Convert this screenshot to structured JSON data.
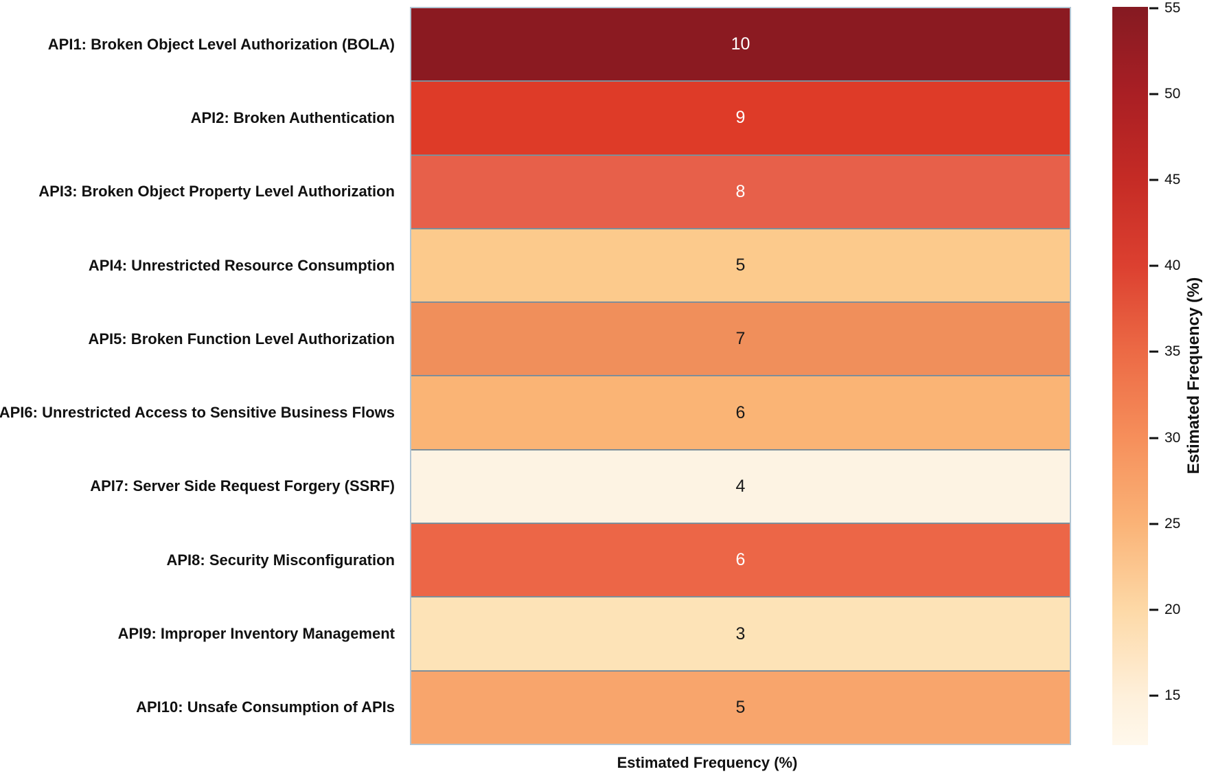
{
  "chart_data": {
    "type": "heatmap",
    "orientation": "single-column-rows",
    "xlabel": "Estimated Frequency (%)",
    "rows": [
      {
        "label": "API1: Broken Object Level Authorization (BOLA)",
        "value": 10,
        "color": "#8B1A21",
        "text_color": "#ffffff"
      },
      {
        "label": "API2: Broken Authentication",
        "value": 9,
        "color": "#DE3B28",
        "text_color": "#ffffff"
      },
      {
        "label": "API3: Broken Object Property Level Authorization",
        "value": 8,
        "color": "#E7604A",
        "text_color": "#ffffff"
      },
      {
        "label": "API4: Unrestricted Resource Consumption",
        "value": 5,
        "color": "#FCCA8C",
        "text_color": "#1a1a1a"
      },
      {
        "label": "API5: Broken Function Level Authorization",
        "value": 7,
        "color": "#F08F5B",
        "text_color": "#1a1a1a"
      },
      {
        "label": "API6: Unrestricted Access to Sensitive Business Flows",
        "value": 6,
        "color": "#FAB475",
        "text_color": "#1a1a1a"
      },
      {
        "label": "API7: Server Side Request Forgery (SSRF)",
        "value": 4,
        "color": "#FDF3E3",
        "text_color": "#1a1a1a"
      },
      {
        "label": "API8: Security Misconfiguration",
        "value": 6,
        "color": "#EC6647",
        "text_color": "#ffffff"
      },
      {
        "label": "API9: Improper Inventory Management",
        "value": 3,
        "color": "#FDE3B7",
        "text_color": "#1a1a1a"
      },
      {
        "label": "API10: Unsafe Consumption of APIs",
        "value": 5,
        "color": "#F8A56C",
        "text_color": "#1a1a1a"
      }
    ],
    "colorbar": {
      "label": "Estimated Frequency (%)",
      "ticks": [
        55,
        50,
        45,
        40,
        35,
        30,
        25,
        20,
        15
      ],
      "range_min": 12.2,
      "range_max": 55,
      "gradient": [
        {
          "value": 55,
          "color": "#851A22"
        },
        {
          "value": 50,
          "color": "#A91F24"
        },
        {
          "value": 45,
          "color": "#C52B25"
        },
        {
          "value": 40,
          "color": "#DC4030"
        },
        {
          "value": 35,
          "color": "#EC6A45"
        },
        {
          "value": 30,
          "color": "#F68F5B"
        },
        {
          "value": 25,
          "color": "#FAB377"
        },
        {
          "value": 20,
          "color": "#FDD9A7"
        },
        {
          "value": 15,
          "color": "#FEF0DB"
        },
        {
          "value": 12.2,
          "color": "#FFF8EC"
        }
      ]
    },
    "grid_line_color": "#7e8e99",
    "outer_border_color": "#b2c5d3"
  }
}
